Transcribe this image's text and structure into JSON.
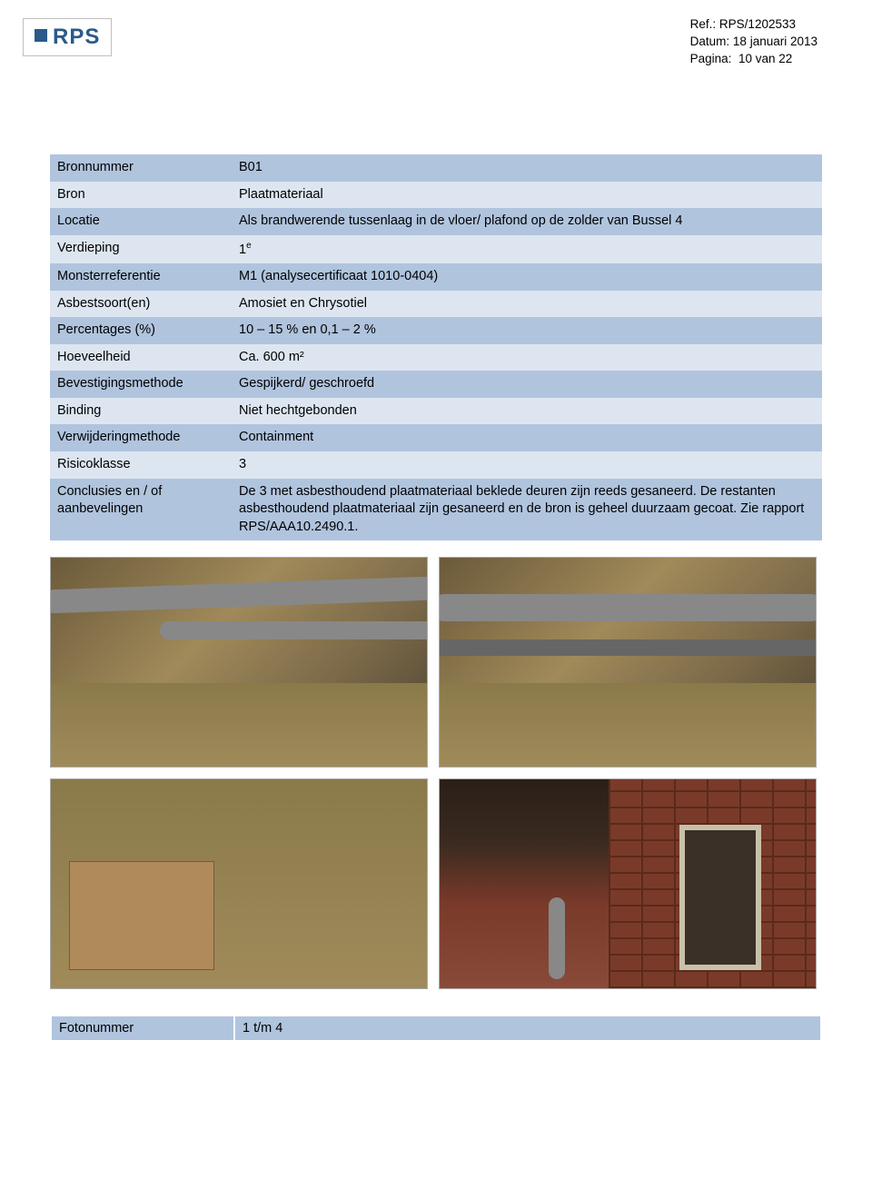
{
  "header": {
    "ref_label": "Ref.:",
    "ref_value": "RPS/1202533",
    "date_label": "Datum:",
    "date_value": "18 januari 2013",
    "page_label": "Pagina:",
    "page_value": "10 van 22",
    "logo_text": "RPS"
  },
  "rows": [
    {
      "label": "Bronnummer",
      "value": "B01"
    },
    {
      "label": "Bron",
      "value": "Plaatmateriaal"
    },
    {
      "label": "Locatie",
      "value": "Als brandwerende tussenlaag in de vloer/ plafond op de zolder van Bussel 4"
    },
    {
      "label": "Verdieping",
      "value": "1",
      "sup": "e"
    },
    {
      "label": "Monsterreferentie",
      "value": "M1 (analysecertificaat 1010-0404)"
    },
    {
      "label": "Asbestsoort(en)",
      "value": "Amosiet en Chrysotiel"
    },
    {
      "label": "Percentages (%)",
      "value": "10 – 15 % en 0,1 – 2 %"
    },
    {
      "label": "Hoeveelheid",
      "value": "Ca. 600 m²"
    },
    {
      "label": "Bevestigingsmethode",
      "value": "Gespijkerd/ geschroefd"
    },
    {
      "label": "Binding",
      "value": "Niet hechtgebonden"
    },
    {
      "label": "Verwijderingmethode",
      "value": "Containment"
    },
    {
      "label": "Risicoklasse",
      "value": "3"
    },
    {
      "label": "Conclusies en / of aanbevelingen",
      "value": "De 3 met asbesthoudend plaatmateriaal beklede deuren zijn reeds gesaneerd. De restanten asbesthoudend plaatmateriaal zijn gesaneerd en de bron is geheel duurzaam gecoat. Zie rapport RPS/AAA10.2490.1."
    }
  ],
  "footer": {
    "label": "Fotonummer",
    "value": "1 t/m 4"
  },
  "colors": {
    "row_odd": "#b0c4de",
    "row_even": "#dde6f0",
    "logo_blue": "#2a5a8a"
  }
}
